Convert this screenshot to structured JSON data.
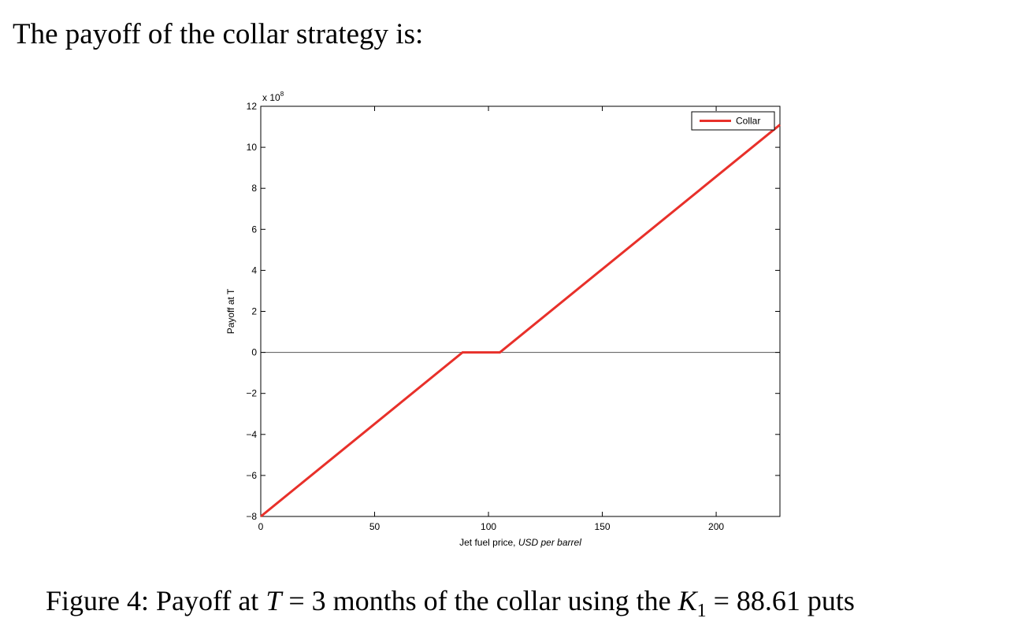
{
  "document": {
    "intro_text": "The payoff of the collar strategy is:",
    "caption": {
      "prefix": "Figure 4: Payoff at ",
      "t_symbol": "T",
      "t_eq": " = 3 months of the collar using the ",
      "k_symbol": "K",
      "k_sub": "1",
      "k_eq": " = 88.61 puts"
    }
  },
  "chart_data": {
    "type": "line",
    "title": "",
    "xlabel": "Jet fuel price, ",
    "xlabel_italic": "USD per barrel",
    "ylabel": "Payoff at T",
    "y_multiplier_label": "x 10",
    "y_multiplier_exp": "8",
    "xlim": [
      0,
      228
    ],
    "ylim": [
      -8,
      12
    ],
    "x_ticks": [
      0,
      50,
      100,
      150,
      200
    ],
    "x_tick_labels": [
      "0",
      "50",
      "100",
      "150",
      "200"
    ],
    "y_ticks": [
      -8,
      -6,
      -4,
      -2,
      0,
      2,
      4,
      6,
      8,
      10,
      12
    ],
    "y_tick_labels": [
      "−8",
      "−6",
      "−4",
      "−2",
      "0",
      "2",
      "4",
      "6",
      "8",
      "10",
      "12"
    ],
    "grid": false,
    "zero_line": true,
    "legend_position": "top-right",
    "series": [
      {
        "name": "Collar",
        "color": "#e8302a",
        "x": [
          0,
          88.61,
          105,
          228
        ],
        "y": [
          -8,
          0,
          0,
          11.1
        ]
      }
    ]
  }
}
